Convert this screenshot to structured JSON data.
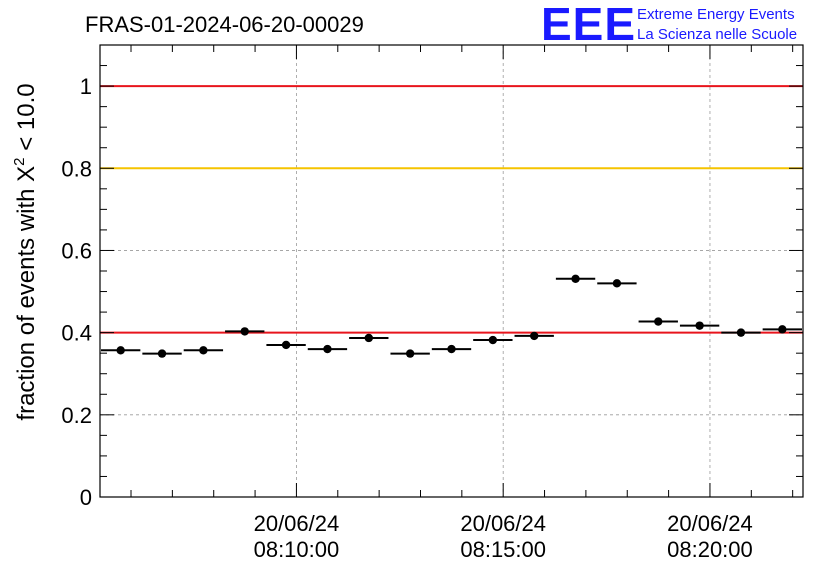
{
  "header": {
    "run_title": "FRAS-01-2024-06-20-00029",
    "logo_letters": "EEE",
    "logo_line1": "Extreme Energy Events",
    "logo_line2": "La Scienza nelle Scuole"
  },
  "chart_data": {
    "type": "scatter",
    "title": "FRAS-01-2024-06-20-00029",
    "ylabel": "fraction of events with χ² < 10.0",
    "ylabel_parts": {
      "main": "fraction of events with X",
      "sup": "2",
      "tail": " < 10.0"
    },
    "xlabel": "",
    "x_unit": "minutes after 08:00:00 on 20/06/24",
    "xlim": [
      5.25,
      22.25
    ],
    "ylim": [
      0,
      1.1
    ],
    "grid": true,
    "x_ticks": [
      {
        "x": 10,
        "date": "20/06/24",
        "time": "08:10:00"
      },
      {
        "x": 15,
        "date": "20/06/24",
        "time": "08:15:00"
      },
      {
        "x": 20,
        "date": "20/06/24",
        "time": "08:20:00"
      }
    ],
    "y_ticks": [
      {
        "y": 0,
        "label": "0"
      },
      {
        "y": 0.2,
        "label": "0.2"
      },
      {
        "y": 0.4,
        "label": "0.4"
      },
      {
        "y": 0.6,
        "label": "0.6"
      },
      {
        "y": 0.8,
        "label": "0.8"
      },
      {
        "y": 1.0,
        "label": "1"
      }
    ],
    "reference_lines": [
      {
        "y": 1.0,
        "color": "#e8141c"
      },
      {
        "y": 0.8,
        "color": "#f5c400"
      },
      {
        "y": 0.4,
        "color": "#e8141c"
      }
    ],
    "bin_width": 1.0,
    "series": [
      {
        "marker_color": "#000000",
        "points": [
          {
            "x": 5.75,
            "y": 0.357
          },
          {
            "x": 6.75,
            "y": 0.349
          },
          {
            "x": 7.75,
            "y": 0.357
          },
          {
            "x": 8.75,
            "y": 0.403
          },
          {
            "x": 9.75,
            "y": 0.37
          },
          {
            "x": 10.75,
            "y": 0.36
          },
          {
            "x": 11.75,
            "y": 0.387
          },
          {
            "x": 12.75,
            "y": 0.349
          },
          {
            "x": 13.75,
            "y": 0.36
          },
          {
            "x": 14.75,
            "y": 0.382
          },
          {
            "x": 15.75,
            "y": 0.392
          },
          {
            "x": 16.75,
            "y": 0.531
          },
          {
            "x": 17.75,
            "y": 0.52
          },
          {
            "x": 18.75,
            "y": 0.427
          },
          {
            "x": 19.75,
            "y": 0.417
          },
          {
            "x": 20.75,
            "y": 0.4
          },
          {
            "x": 21.75,
            "y": 0.408
          }
        ]
      }
    ]
  }
}
